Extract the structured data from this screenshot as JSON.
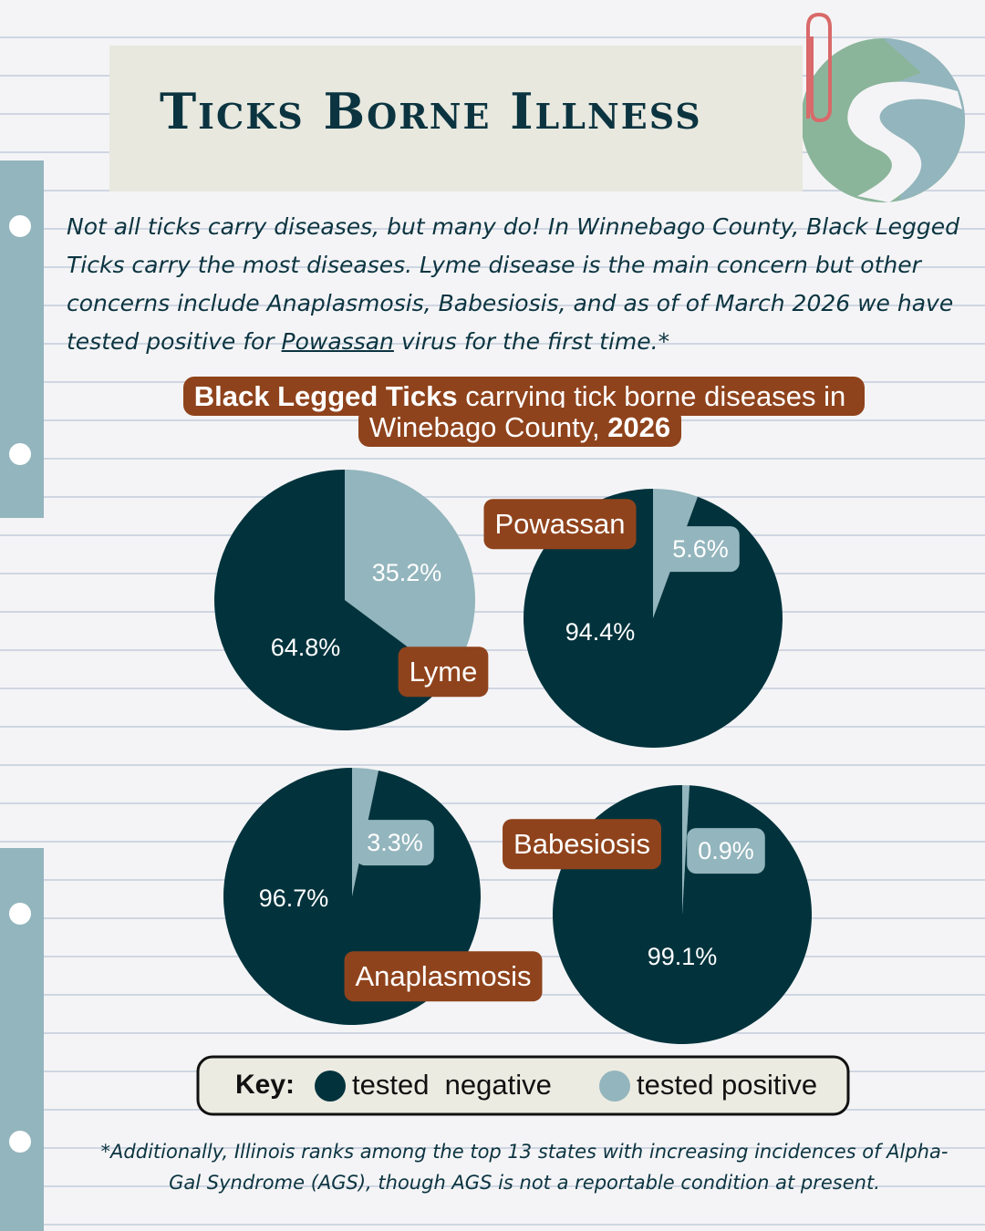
{
  "header": {
    "title": "Ticks Borne Illness"
  },
  "intro": {
    "before": "Not all ticks carry diseases, but many do! In Winnebago County, Black Legged Ticks carry the most diseases. Lyme disease is the main concern but other concerns include Anaplasmosis, Babesiosis, and as of of March 2026 we have tested positive for ",
    "link": "Powassan",
    "after": " virus for the first time.*"
  },
  "chart_heading": {
    "bold_start": "Black Legged Ticks",
    "middle": " carrying tick borne diseases in Winebago County, ",
    "bold_end": "2026"
  },
  "chart_data": [
    {
      "type": "pie",
      "label": "Lyme",
      "categories": [
        "tested  negative",
        "tested positive"
      ],
      "values": [
        64.8,
        35.2
      ],
      "value_labels": [
        "64.8%",
        "35.2%"
      ],
      "colors": [
        "#02333d",
        "#93b5bd"
      ]
    },
    {
      "type": "pie",
      "label": "Powassan",
      "categories": [
        "tested  negative",
        "tested positive"
      ],
      "values": [
        94.4,
        5.6
      ],
      "value_labels": [
        "94.4%",
        "5.6%"
      ],
      "colors": [
        "#02333d",
        "#93b5bd"
      ]
    },
    {
      "type": "pie",
      "label": "Anaplasmosis",
      "categories": [
        "tested  negative",
        "tested positive"
      ],
      "values": [
        96.7,
        3.3
      ],
      "value_labels": [
        "96.7%",
        "3.3%"
      ],
      "colors": [
        "#02333d",
        "#93b5bd"
      ]
    },
    {
      "type": "pie",
      "label": "Babesiosis",
      "categories": [
        "tested  negative",
        "tested positive"
      ],
      "values": [
        99.1,
        0.9
      ],
      "value_labels": [
        "99.1%",
        "0.9%"
      ],
      "colors": [
        "#02333d",
        "#93b5bd"
      ]
    }
  ],
  "key_label": "Key:",
  "footnote": "*Additionally, Illinois ranks among the top 13 states with increasing incidences of Alpha-Gal Syndrome (AGS), though AGS is not a reportable condition at present."
}
